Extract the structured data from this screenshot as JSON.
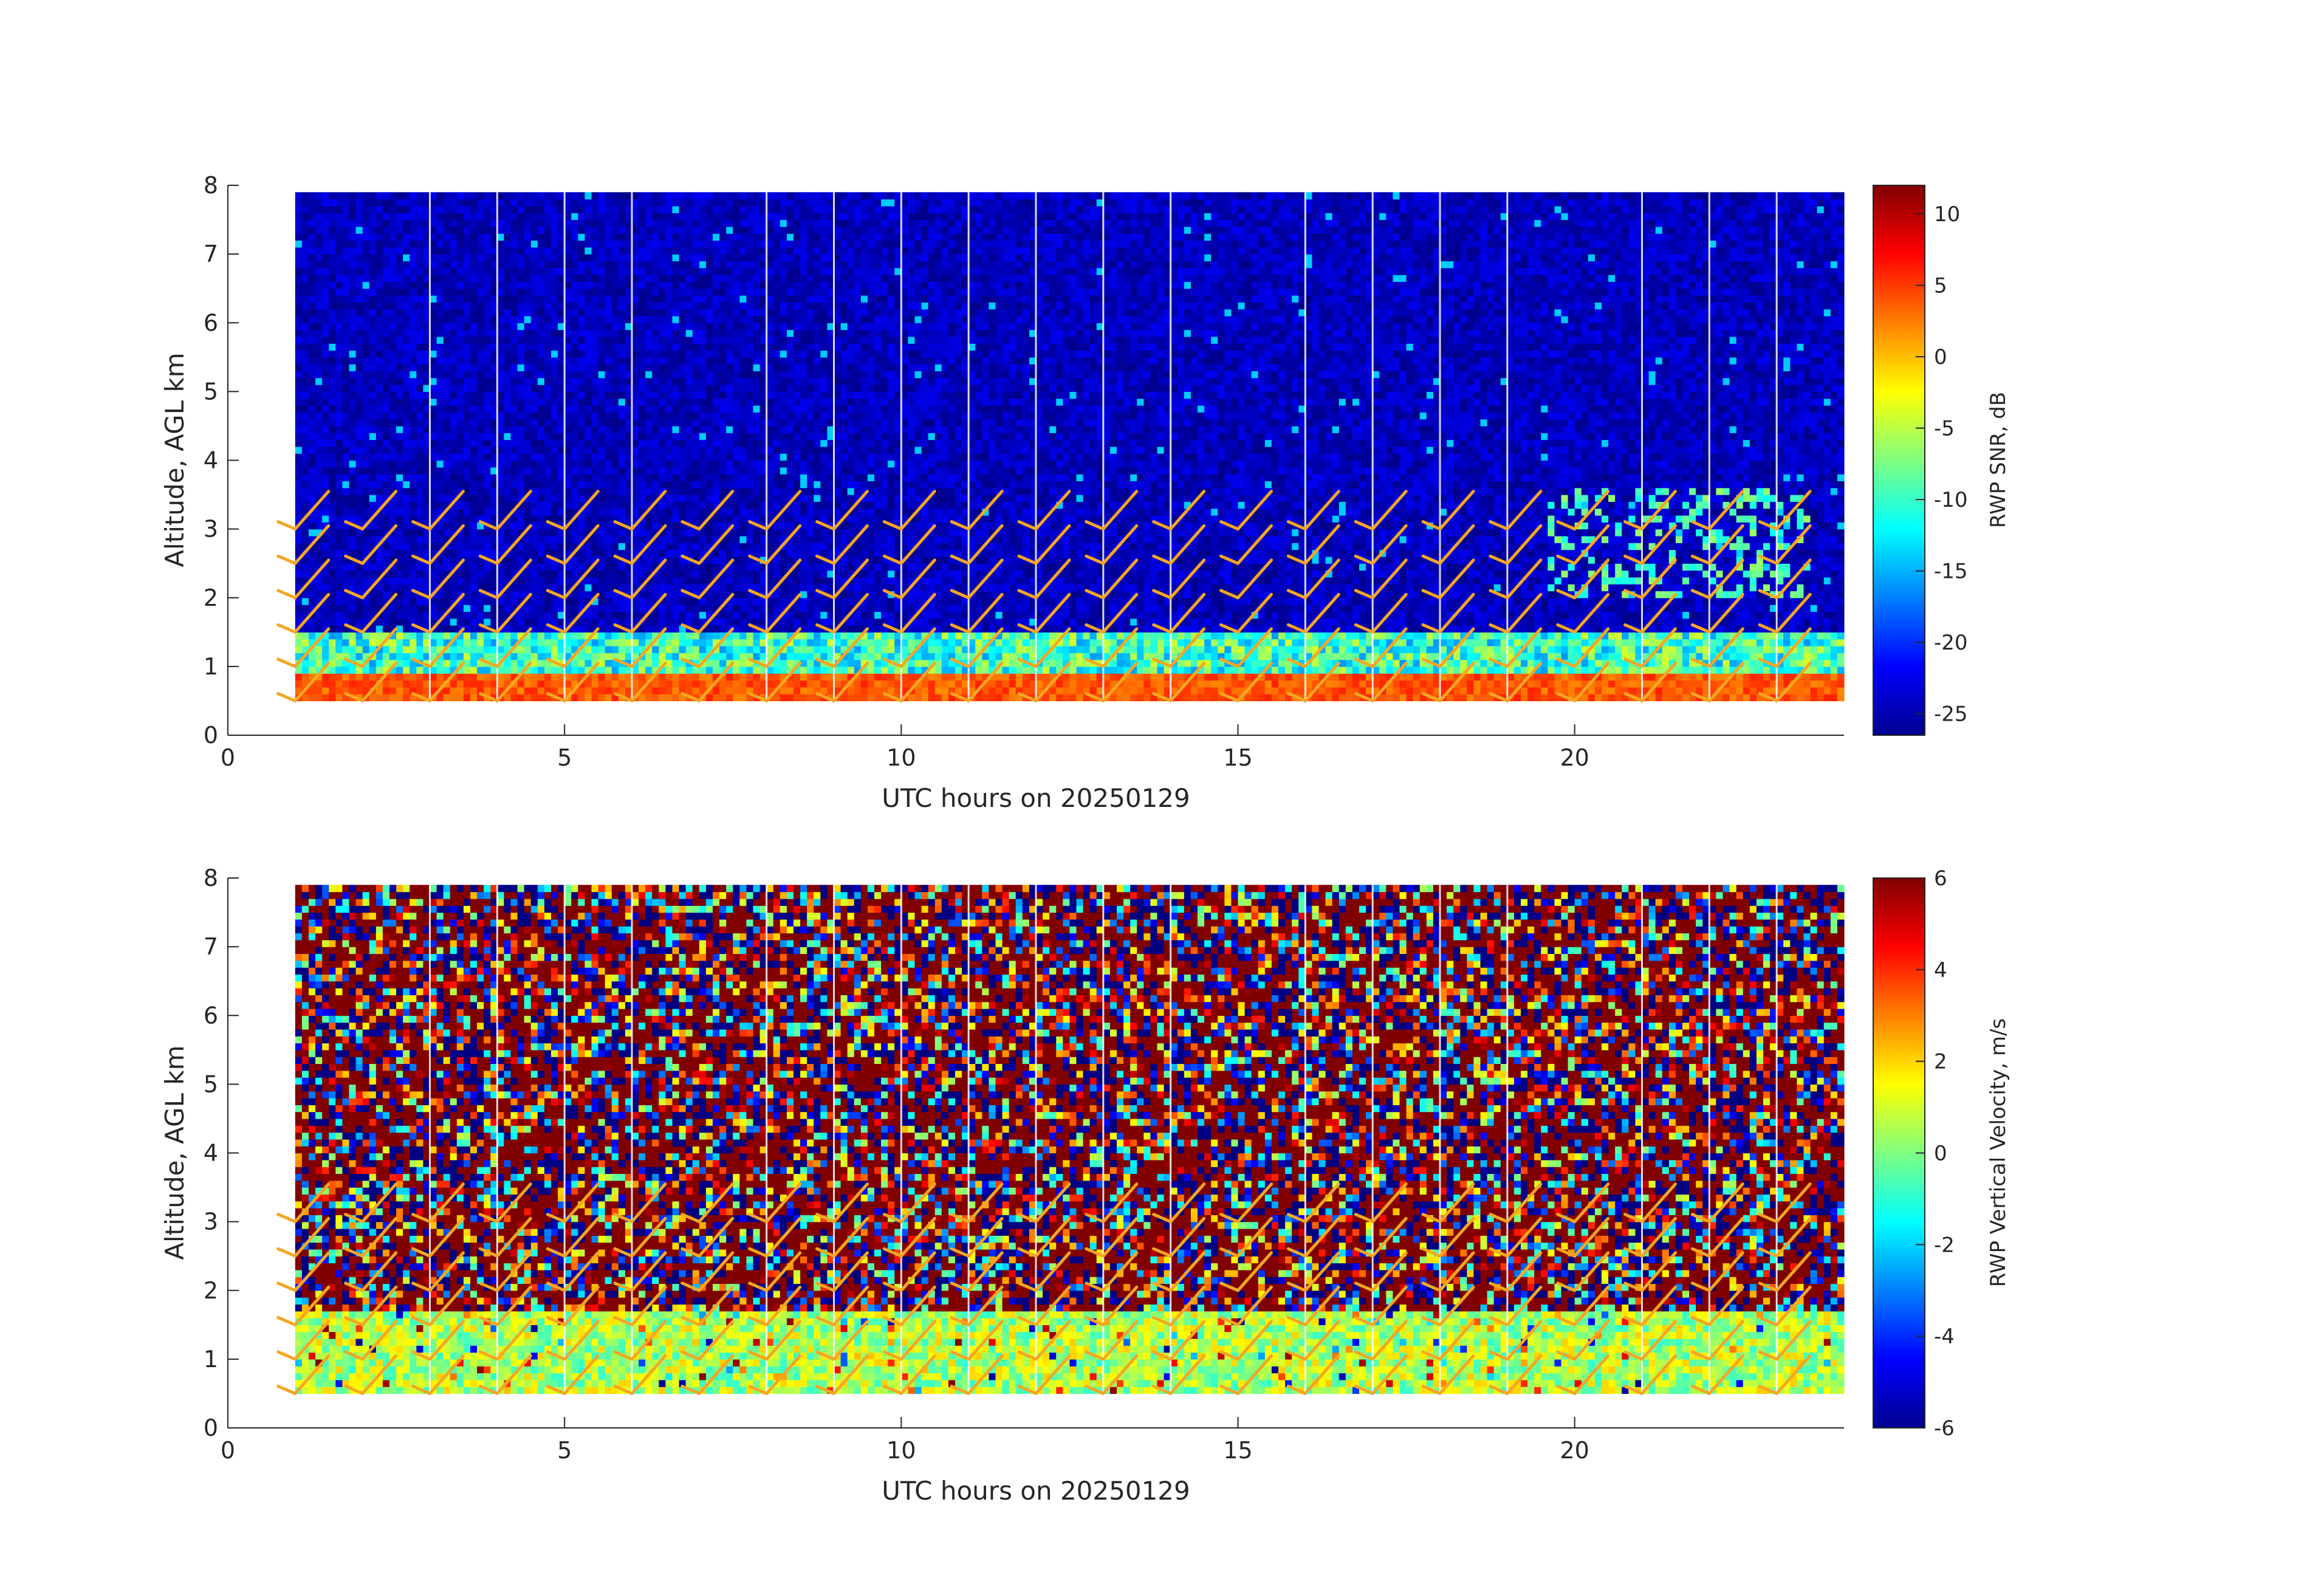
{
  "colors": {
    "background": "#ffffff",
    "axis": "#262626",
    "wind_barb": "#f5a623",
    "missing_column": "#ffffff"
  },
  "chart_data": [
    {
      "type": "heatmap",
      "variable": "RWP SNR",
      "xlabel": "UTC hours on 20250129",
      "ylabel": "Altitude, AGL km",
      "xlim": [
        0,
        24
      ],
      "ylim": [
        0,
        8
      ],
      "xticks": [
        "0",
        "5",
        "10",
        "15",
        "20"
      ],
      "yticks": [
        "0",
        "1",
        "2",
        "3",
        "4",
        "5",
        "6",
        "7",
        "8"
      ],
      "colorbar": {
        "label": "RWP SNR, dB",
        "colormap": "jet",
        "range": [
          -26.5,
          12
        ],
        "ticks": [
          "10",
          "5",
          "0",
          "-5",
          "-10",
          "-15",
          "-20",
          "-25"
        ],
        "tick_values": [
          10,
          5,
          0,
          -5,
          -10,
          -15,
          -20,
          -25
        ]
      },
      "data_extent": {
        "x": [
          1,
          24
        ],
        "y": [
          0.5,
          7.9
        ]
      },
      "structure": [
        {
          "altitude_km": [
            0.5,
            0.9
          ],
          "hours": [
            1,
            24
          ],
          "snr_db": 5
        },
        {
          "altitude_km": [
            0.9,
            1.5
          ],
          "hours": [
            1,
            24
          ],
          "snr_db": -10
        },
        {
          "altitude_km": [
            1.5,
            7.9
          ],
          "hours": [
            1,
            24
          ],
          "snr_db": -25
        },
        {
          "feature": "enhanced echo aloft",
          "altitude_km": [
            2.0,
            3.6
          ],
          "hours": [
            19.5,
            23.5
          ],
          "snr_db": -12
        }
      ],
      "missing_hours": [
        3,
        4,
        5,
        6,
        8,
        9,
        10,
        11,
        12,
        13,
        14,
        16,
        17,
        18,
        19,
        21,
        22,
        23
      ]
    },
    {
      "type": "heatmap",
      "variable": "RWP Vertical Velocity",
      "xlabel": "UTC hours on 20250129",
      "ylabel": "Altitude, AGL km",
      "xlim": [
        0,
        24
      ],
      "ylim": [
        0,
        8
      ],
      "xticks": [
        "0",
        "5",
        "10",
        "15",
        "20"
      ],
      "yticks": [
        "0",
        "1",
        "2",
        "3",
        "4",
        "5",
        "6",
        "7",
        "8"
      ],
      "colorbar": {
        "label": "RWP Vertical Velocity, m/s",
        "colormap": "jet",
        "range": [
          -6,
          6
        ],
        "ticks": [
          "6",
          "4",
          "2",
          "0",
          "-2",
          "-4",
          "-6"
        ],
        "tick_values": [
          6,
          4,
          2,
          0,
          -2,
          -4,
          -6
        ]
      },
      "data_extent": {
        "x": [
          1,
          24
        ],
        "y": [
          0.5,
          7.9
        ]
      },
      "structure": [
        {
          "altitude_km": [
            0.5,
            1.7
          ],
          "hours": [
            1,
            24
          ],
          "w_ms": 0.5
        },
        {
          "altitude_km": [
            1.7,
            7.9
          ],
          "hours": [
            1,
            24
          ],
          "w_ms": "noise, ±6"
        }
      ],
      "missing_hours": [
        3,
        4,
        5,
        6,
        8,
        9,
        10,
        11,
        12,
        13,
        14,
        16,
        17,
        18,
        19,
        21,
        22,
        23
      ]
    }
  ],
  "wind_barbs": {
    "hours": [
      1,
      2,
      3,
      4,
      5,
      6,
      7,
      8,
      9,
      10,
      11,
      12,
      13,
      14,
      15,
      16,
      17,
      18,
      19,
      20,
      21,
      22,
      23
    ],
    "altitudes_km": [
      0.5,
      1.0,
      1.5,
      2.0,
      2.5,
      3.0
    ]
  }
}
